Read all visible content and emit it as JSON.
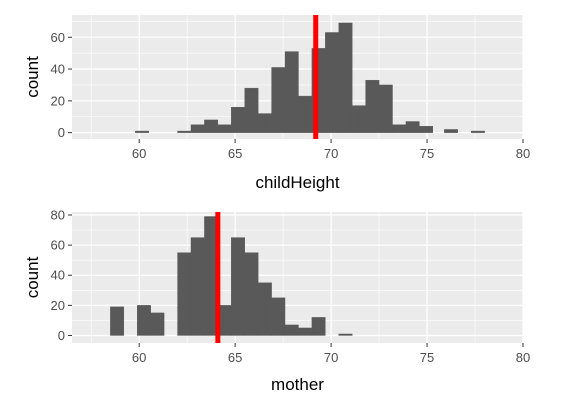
{
  "colors": {
    "panel_bg": "#ebebeb",
    "grid_major": "#ffffff",
    "bar_fill": "#595959",
    "bar_stroke": "#595959",
    "ref_line": "#ff0000",
    "tick_text": "#4d4d4d",
    "axis_title": "#000000"
  },
  "chart_data": [
    {
      "type": "bar",
      "subtype": "histogram",
      "xlabel": "childHeight",
      "ylabel": "count",
      "xlim": [
        56.5,
        80
      ],
      "ylim": [
        -4,
        74
      ],
      "xticks": [
        60,
        65,
        70,
        75,
        80
      ],
      "yticks": [
        0,
        20,
        40,
        60
      ],
      "grid": true,
      "bins": [
        {
          "x0": 59.8,
          "x1": 60.5,
          "count": 1
        },
        {
          "x0": 62.0,
          "x1": 62.7,
          "count": 1
        },
        {
          "x0": 62.7,
          "x1": 63.4,
          "count": 5
        },
        {
          "x0": 63.4,
          "x1": 64.1,
          "count": 8
        },
        {
          "x0": 64.1,
          "x1": 64.8,
          "count": 5
        },
        {
          "x0": 64.8,
          "x1": 65.5,
          "count": 16
        },
        {
          "x0": 65.5,
          "x1": 66.2,
          "count": 28
        },
        {
          "x0": 66.2,
          "x1": 66.9,
          "count": 12
        },
        {
          "x0": 66.9,
          "x1": 67.6,
          "count": 41
        },
        {
          "x0": 67.6,
          "x1": 68.3,
          "count": 51
        },
        {
          "x0": 68.3,
          "x1": 69.0,
          "count": 23
        },
        {
          "x0": 69.0,
          "x1": 69.7,
          "count": 53
        },
        {
          "x0": 69.7,
          "x1": 70.4,
          "count": 63
        },
        {
          "x0": 70.4,
          "x1": 71.1,
          "count": 69
        },
        {
          "x0": 71.1,
          "x1": 71.8,
          "count": 17
        },
        {
          "x0": 71.8,
          "x1": 72.5,
          "count": 33
        },
        {
          "x0": 72.5,
          "x1": 73.2,
          "count": 30
        },
        {
          "x0": 73.2,
          "x1": 73.9,
          "count": 5
        },
        {
          "x0": 73.9,
          "x1": 74.6,
          "count": 7
        },
        {
          "x0": 74.6,
          "x1": 75.3,
          "count": 4
        },
        {
          "x0": 75.9,
          "x1": 76.6,
          "count": 2
        },
        {
          "x0": 77.3,
          "x1": 78.0,
          "count": 1
        }
      ],
      "ref_line_x": 69.2
    },
    {
      "type": "bar",
      "subtype": "histogram",
      "xlabel": "mother",
      "ylabel": "count",
      "xlim": [
        56.5,
        80
      ],
      "ylim": [
        -5,
        82
      ],
      "xticks": [
        60,
        65,
        70,
        75,
        80
      ],
      "yticks": [
        0,
        20,
        40,
        60,
        80
      ],
      "grid": true,
      "bins": [
        {
          "x0": 58.5,
          "x1": 59.2,
          "count": 19
        },
        {
          "x0": 59.9,
          "x1": 60.6,
          "count": 20
        },
        {
          "x0": 60.6,
          "x1": 61.3,
          "count": 15
        },
        {
          "x0": 62.0,
          "x1": 62.7,
          "count": 55
        },
        {
          "x0": 62.7,
          "x1": 63.4,
          "count": 65
        },
        {
          "x0": 63.4,
          "x1": 64.1,
          "count": 79
        },
        {
          "x0": 64.1,
          "x1": 64.8,
          "count": 20
        },
        {
          "x0": 64.8,
          "x1": 65.5,
          "count": 65
        },
        {
          "x0": 65.5,
          "x1": 66.2,
          "count": 55
        },
        {
          "x0": 66.2,
          "x1": 66.9,
          "count": 35
        },
        {
          "x0": 66.9,
          "x1": 67.6,
          "count": 25
        },
        {
          "x0": 67.6,
          "x1": 68.3,
          "count": 7
        },
        {
          "x0": 68.3,
          "x1": 69.0,
          "count": 5
        },
        {
          "x0": 69.0,
          "x1": 69.7,
          "count": 12
        },
        {
          "x0": 70.4,
          "x1": 71.1,
          "count": 1
        }
      ],
      "ref_line_x": 64.1
    }
  ]
}
